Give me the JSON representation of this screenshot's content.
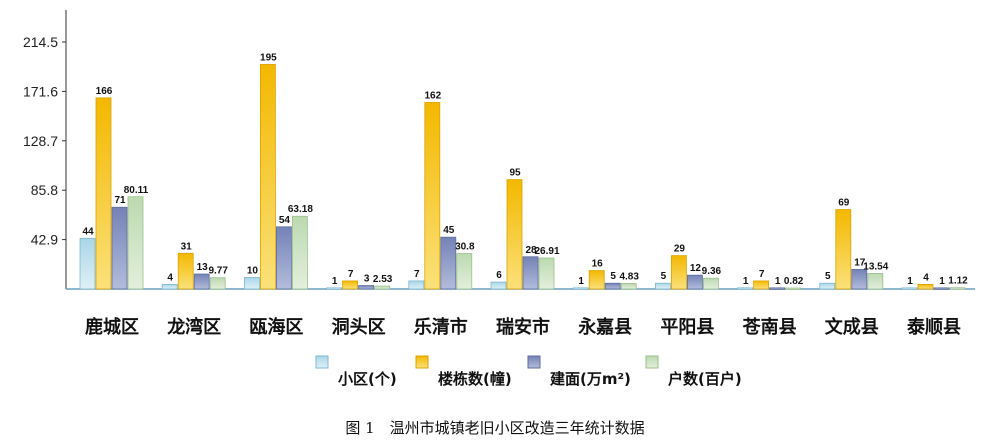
{
  "chart_data": {
    "type": "bar",
    "categories": [
      "鹿城区",
      "龙湾区",
      "瓯海区",
      "洞头区",
      "乐清市",
      "瑞安市",
      "永嘉县",
      "平阳县",
      "苍南县",
      "文成县",
      "泰顺县"
    ],
    "series": [
      {
        "name": "小区(个)",
        "values": [
          44,
          4,
          10,
          1,
          7,
          6,
          1,
          5,
          1,
          5,
          1
        ],
        "labels": [
          "44",
          "4",
          "10",
          "1",
          "7",
          "6",
          "1",
          "5",
          "1",
          "5",
          "1"
        ],
        "color": "#bfe3ef"
      },
      {
        "name": "楼栋数(幢)",
        "values": [
          166,
          31,
          195,
          7,
          162,
          95,
          16,
          29,
          7,
          69,
          4
        ],
        "labels": [
          "166",
          "31",
          "195",
          "7",
          "162",
          "95",
          "16",
          "29",
          "7",
          "69",
          "4"
        ],
        "color": "#f6c62d"
      },
      {
        "name": "建面(万m²)",
        "values": [
          71,
          13,
          54,
          3,
          45,
          28,
          5,
          12,
          1,
          17,
          1
        ],
        "labels": [
          "71",
          "13",
          "54",
          "3",
          "45",
          "28",
          "5",
          "12",
          "1",
          "17",
          "1"
        ],
        "color": "#8592bf"
      },
      {
        "name": "户数(百户)",
        "values": [
          80.11,
          9.77,
          63.18,
          2.53,
          30.8,
          26.91,
          4.83,
          9.36,
          0.82,
          13.54,
          1.12
        ],
        "labels": [
          "80.11",
          "9.77",
          "63.18",
          "2.53",
          "30.8",
          "26.91",
          "4.83",
          "9.36",
          "0.82",
          "13.54",
          "1.12"
        ],
        "color": "#cfe3c5"
      }
    ],
    "yticks": [
      "42.9",
      "85.8",
      "128.7",
      "171.6",
      "214.5"
    ],
    "ylim": [
      0,
      240
    ],
    "grid": false,
    "legend": "bottom",
    "caption": "图 1　温州市城镇老旧小区改造三年统计数据"
  }
}
